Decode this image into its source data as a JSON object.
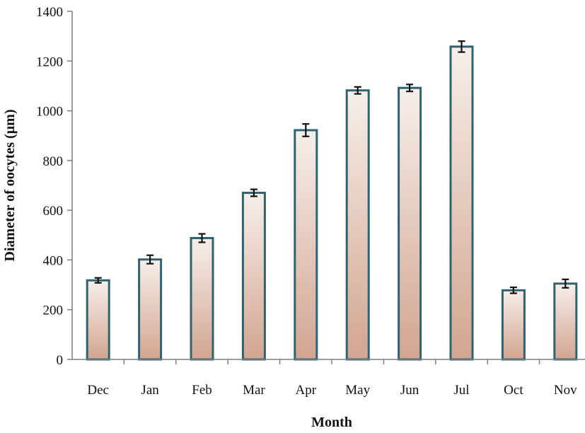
{
  "chart_data": {
    "type": "bar",
    "title": "",
    "xlabel": "Month",
    "ylabel": "Diameter of oocytes (µm)",
    "ylim": [
      0,
      1400
    ],
    "yticks": [
      0,
      200,
      400,
      600,
      800,
      1000,
      1200,
      1400
    ],
    "categories": [
      "Dec",
      "Jan",
      "Feb",
      "Mar",
      "Apr",
      "May",
      "Jun",
      "Jul",
      "Oct",
      "Nov"
    ],
    "values": [
      318,
      402,
      488,
      670,
      922,
      1082,
      1092,
      1258,
      278,
      305
    ],
    "errors": [
      10,
      17,
      17,
      14,
      25,
      14,
      14,
      22,
      12,
      17
    ],
    "grid": false,
    "colors": {
      "bar_top": "#f7efea",
      "bar_bottom": "#d2a590",
      "bar_stroke": "#2e6470",
      "axis": "#7f7f7f"
    }
  }
}
